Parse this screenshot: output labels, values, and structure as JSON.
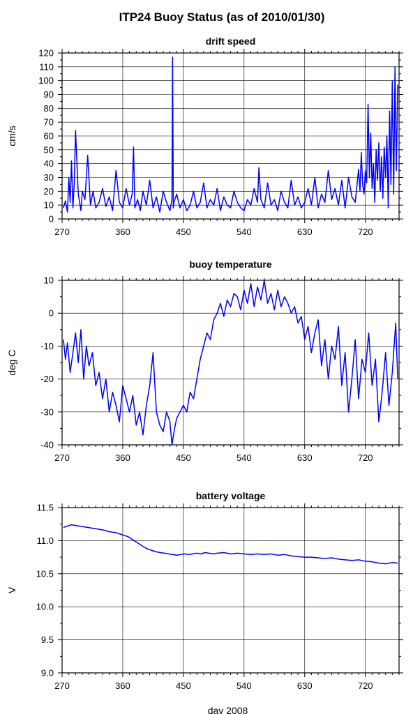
{
  "title": "ITP24 Buoy Status (as of 2010/01/30)",
  "line_color": "#0000ff",
  "chart_data": [
    {
      "type": "line",
      "title": "drift speed",
      "xlabel": "",
      "ylabel": "cm/s",
      "xlim": [
        270,
        770
      ],
      "ylim": [
        0,
        120
      ],
      "x_ticks": [
        270,
        360,
        450,
        540,
        630,
        720
      ],
      "y_ticks": [
        0,
        10,
        20,
        30,
        40,
        50,
        60,
        70,
        80,
        90,
        100,
        110,
        120
      ],
      "grid": true,
      "series": [
        {
          "x": [
            272,
            275,
            278,
            280,
            282,
            284,
            286,
            288,
            290,
            294,
            298,
            300,
            304,
            308,
            312,
            316,
            320,
            325,
            330,
            335,
            340,
            345,
            350,
            355,
            360,
            365,
            370,
            374,
            376,
            378,
            382,
            386,
            390,
            395,
            400,
            405,
            410,
            415,
            420,
            425,
            430,
            433,
            434,
            435,
            436,
            440,
            445,
            450,
            455,
            460,
            465,
            470,
            475,
            480,
            485,
            490,
            495,
            500,
            505,
            510,
            515,
            520,
            525,
            530,
            535,
            540,
            545,
            550,
            555,
            560,
            562,
            565,
            570,
            575,
            580,
            585,
            590,
            595,
            600,
            605,
            610,
            615,
            620,
            625,
            630,
            635,
            640,
            645,
            650,
            655,
            660,
            665,
            670,
            675,
            680,
            685,
            690,
            695,
            700,
            705,
            710,
            712,
            714,
            716,
            718,
            720,
            722,
            724,
            726,
            728,
            730,
            732,
            734,
            736,
            738,
            740,
            742,
            744,
            746,
            748,
            750,
            752,
            754,
            756,
            758,
            760,
            762,
            764,
            766,
            768
          ],
          "y": [
            8,
            13,
            5,
            30,
            12,
            42,
            8,
            25,
            64,
            18,
            6,
            20,
            14,
            46,
            10,
            20,
            8,
            12,
            22,
            9,
            16,
            6,
            35,
            12,
            8,
            22,
            10,
            18,
            52,
            8,
            14,
            6,
            20,
            10,
            28,
            8,
            16,
            5,
            20,
            12,
            6,
            14,
            117,
            8,
            12,
            18,
            8,
            14,
            6,
            10,
            20,
            8,
            12,
            26,
            8,
            14,
            10,
            22,
            6,
            16,
            10,
            8,
            20,
            12,
            8,
            6,
            14,
            10,
            22,
            12,
            37,
            14,
            8,
            26,
            10,
            14,
            6,
            20,
            12,
            8,
            28,
            10,
            16,
            8,
            12,
            22,
            10,
            30,
            8,
            18,
            12,
            35,
            14,
            22,
            10,
            28,
            8,
            30,
            16,
            12,
            36,
            20,
            48,
            25,
            18,
            35,
            26,
            83,
            30,
            62,
            22,
            40,
            12,
            50,
            28,
            55,
            20,
            45,
            15,
            52,
            30,
            60,
            8,
            78,
            25,
            100,
            18,
            110,
            35,
            97
          ]
        }
      ]
    },
    {
      "type": "line",
      "title": "buoy temperature",
      "xlabel": "",
      "ylabel": "deg C",
      "xlim": [
        270,
        770
      ],
      "ylim": [
        -40,
        10
      ],
      "x_ticks": [
        270,
        360,
        450,
        540,
        630,
        720
      ],
      "y_ticks": [
        -40,
        -30,
        -20,
        -10,
        0,
        10
      ],
      "grid": true,
      "series": [
        {
          "x": [
            272,
            275,
            278,
            282,
            286,
            290,
            294,
            298,
            302,
            306,
            310,
            315,
            320,
            325,
            330,
            335,
            340,
            345,
            350,
            355,
            360,
            365,
            370,
            375,
            380,
            385,
            390,
            395,
            400,
            405,
            410,
            415,
            420,
            425,
            430,
            433,
            436,
            440,
            445,
            450,
            455,
            460,
            465,
            470,
            475,
            480,
            485,
            490,
            495,
            500,
            505,
            510,
            515,
            520,
            525,
            530,
            535,
            540,
            545,
            550,
            555,
            560,
            565,
            570,
            575,
            580,
            585,
            590,
            595,
            600,
            605,
            610,
            615,
            620,
            625,
            630,
            635,
            640,
            645,
            650,
            655,
            660,
            665,
            670,
            675,
            680,
            685,
            690,
            695,
            700,
            705,
            710,
            715,
            720,
            725,
            730,
            735,
            740,
            745,
            750,
            755,
            760,
            765,
            768
          ],
          "y": [
            -8,
            -14,
            -9,
            -18,
            -12,
            -6,
            -15,
            -5,
            -20,
            -10,
            -16,
            -12,
            -22,
            -18,
            -26,
            -20,
            -30,
            -24,
            -28,
            -33,
            -22,
            -26,
            -30,
            -25,
            -34,
            -30,
            -37,
            -28,
            -22,
            -12,
            -30,
            -34,
            -36,
            -30,
            -33,
            -40,
            -36,
            -32,
            -30,
            -28,
            -30,
            -24,
            -26,
            -20,
            -14,
            -10,
            -6,
            -8,
            -2,
            0,
            3,
            -1,
            4,
            2,
            6,
            5,
            1,
            7,
            3,
            9,
            2,
            8,
            4,
            10,
            3,
            6,
            1,
            7,
            2,
            5,
            3,
            0,
            2,
            -3,
            -1,
            -8,
            -4,
            -12,
            -6,
            -2,
            -16,
            -8,
            -20,
            -10,
            -14,
            -4,
            -22,
            -12,
            -30,
            -20,
            -8,
            -26,
            -14,
            -18,
            -6,
            -22,
            -14,
            -33,
            -24,
            -12,
            -28,
            -18,
            -3,
            -20
          ]
        }
      ]
    },
    {
      "type": "line",
      "title": "battery voltage",
      "xlabel": "day 2008",
      "ylabel": "V",
      "xlim": [
        270,
        770
      ],
      "ylim": [
        9.0,
        11.5
      ],
      "x_ticks": [
        270,
        360,
        450,
        540,
        630,
        720
      ],
      "y_ticks": [
        9.0,
        9.5,
        10.0,
        10.5,
        11.0,
        11.5
      ],
      "y_tick_labels": [
        "9.0",
        "9.5",
        "10.0",
        "10.5",
        "11.0",
        "11.5"
      ],
      "grid": true,
      "series": [
        {
          "x": [
            272,
            278,
            284,
            290,
            296,
            302,
            308,
            314,
            320,
            326,
            332,
            338,
            344,
            350,
            356,
            362,
            368,
            374,
            380,
            386,
            392,
            398,
            404,
            410,
            416,
            422,
            428,
            434,
            440,
            446,
            452,
            458,
            464,
            470,
            476,
            482,
            488,
            494,
            500,
            510,
            520,
            530,
            540,
            550,
            560,
            570,
            580,
            590,
            600,
            610,
            620,
            630,
            640,
            650,
            660,
            670,
            680,
            690,
            700,
            710,
            720,
            730,
            740,
            750,
            760,
            768
          ],
          "y": [
            11.2,
            11.22,
            11.24,
            11.23,
            11.22,
            11.21,
            11.2,
            11.19,
            11.18,
            11.17,
            11.16,
            11.14,
            11.13,
            11.12,
            11.1,
            11.08,
            11.06,
            11.02,
            10.98,
            10.94,
            10.9,
            10.87,
            10.85,
            10.83,
            10.82,
            10.81,
            10.8,
            10.79,
            10.78,
            10.79,
            10.8,
            10.79,
            10.8,
            10.81,
            10.8,
            10.82,
            10.81,
            10.8,
            10.81,
            10.82,
            10.8,
            10.81,
            10.8,
            10.79,
            10.8,
            10.79,
            10.8,
            10.78,
            10.79,
            10.77,
            10.76,
            10.75,
            10.75,
            10.74,
            10.73,
            10.74,
            10.72,
            10.71,
            10.7,
            10.71,
            10.69,
            10.68,
            10.66,
            10.65,
            10.67,
            10.66
          ]
        }
      ]
    }
  ]
}
